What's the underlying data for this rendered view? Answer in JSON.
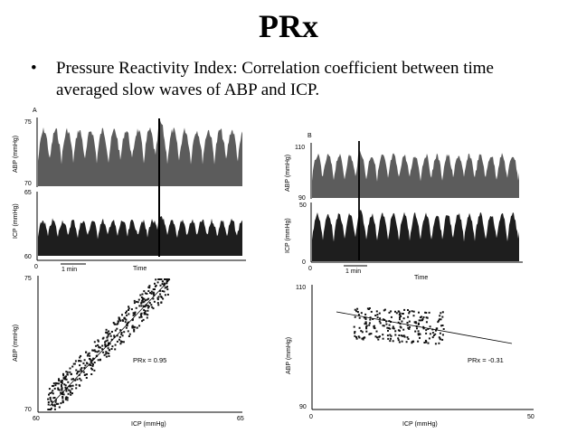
{
  "slide": {
    "title": "PRx",
    "bullet_marker": "•",
    "bullet_text": "Pressure Reactivity Index: Correlation coefficient between time averaged  slow waves of ABP and ICP."
  },
  "figure": {
    "panel_a": {
      "letter": "A",
      "abp_axis_label": "ABP (mmHg)",
      "abp_ticks": [
        "75",
        "70"
      ],
      "icp_axis_label": "ICP (mmHg)",
      "icp_ticks": [
        "65",
        "60"
      ],
      "x_zero": "0",
      "scale_bar_label": "1 min",
      "time_label": "Time",
      "scatter_xlabel": "ICP (mmHg)",
      "scatter_ylabel": "ABP (mmHg)",
      "scatter_y_ticks": [
        "75",
        "70"
      ],
      "scatter_x_ticks": [
        "60",
        "65"
      ],
      "prx_text": "PRx = 0.95"
    },
    "panel_b": {
      "letter": "B",
      "abp_axis_label": "ABP (mmHg)",
      "abp_ticks": [
        "110",
        "90"
      ],
      "icp_axis_label": "ICP (mmHg)",
      "icp_ticks": [
        "50",
        "0"
      ],
      "x_zero": "0",
      "scale_bar_label": "1 min",
      "time_label": "Time",
      "scatter_xlabel": "ICP (mmHg)",
      "scatter_ylabel": "ABP (mmHg)",
      "scatter_y_ticks": [
        "110",
        "90"
      ],
      "scatter_x_ticks": [
        "0",
        "50"
      ],
      "prx_text": "PRx = -0.31"
    },
    "colors": {
      "abp_fill": "#5c5c5c",
      "icp_fill": "#1e1e1e",
      "axis": "#000000",
      "marker": "#111111"
    }
  }
}
